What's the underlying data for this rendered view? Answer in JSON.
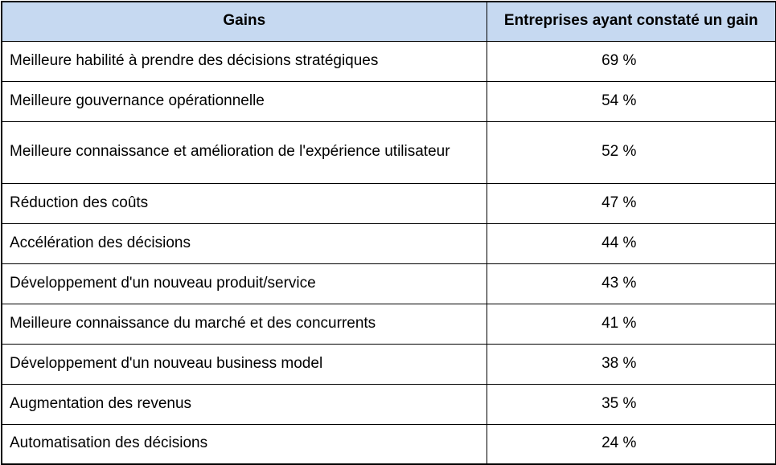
{
  "style": {
    "header_bg": "#c6d9f1",
    "border_color": "#000000",
    "text_color": "#000000"
  },
  "chart_data": {
    "type": "table",
    "title": "",
    "columns": [
      "Gains",
      "Entreprises ayant constaté un gain"
    ],
    "categories": [
      "Meilleure habilité à prendre des décisions stratégiques",
      "Meilleure gouvernance opérationnelle",
      "Meilleure connaissance et amélioration de l'expérience utilisateur",
      "Réduction des coûts",
      "Accélération des décisions",
      "Développement d'un nouveau produit/service",
      "Meilleure connaissance du marché et des concurrents",
      "Développement d'un nouveau business model",
      "Augmentation des revenus",
      "Automatisation des décisions"
    ],
    "values_percent": [
      69,
      54,
      52,
      47,
      44,
      43,
      41,
      38,
      35,
      24
    ],
    "rows": [
      {
        "gain": "Meilleure habilité à prendre des décisions stratégiques",
        "value": "69 %"
      },
      {
        "gain": "Meilleure gouvernance opérationnelle",
        "value": "54 %"
      },
      {
        "gain": "Meilleure connaissance et amélioration de l'expérience utilisateur",
        "value": "52 %"
      },
      {
        "gain": "Réduction des coûts",
        "value": "47 %"
      },
      {
        "gain": "Accélération des décisions",
        "value": "44 %"
      },
      {
        "gain": "Développement d'un nouveau produit/service",
        "value": "43 %"
      },
      {
        "gain": "Meilleure connaissance du marché et des concurrents",
        "value": "41 %"
      },
      {
        "gain": "Développement d'un nouveau business model",
        "value": "38 %"
      },
      {
        "gain": "Augmentation des revenus",
        "value": "35 %"
      },
      {
        "gain": "Automatisation des décisions",
        "value": "24 %"
      }
    ]
  }
}
